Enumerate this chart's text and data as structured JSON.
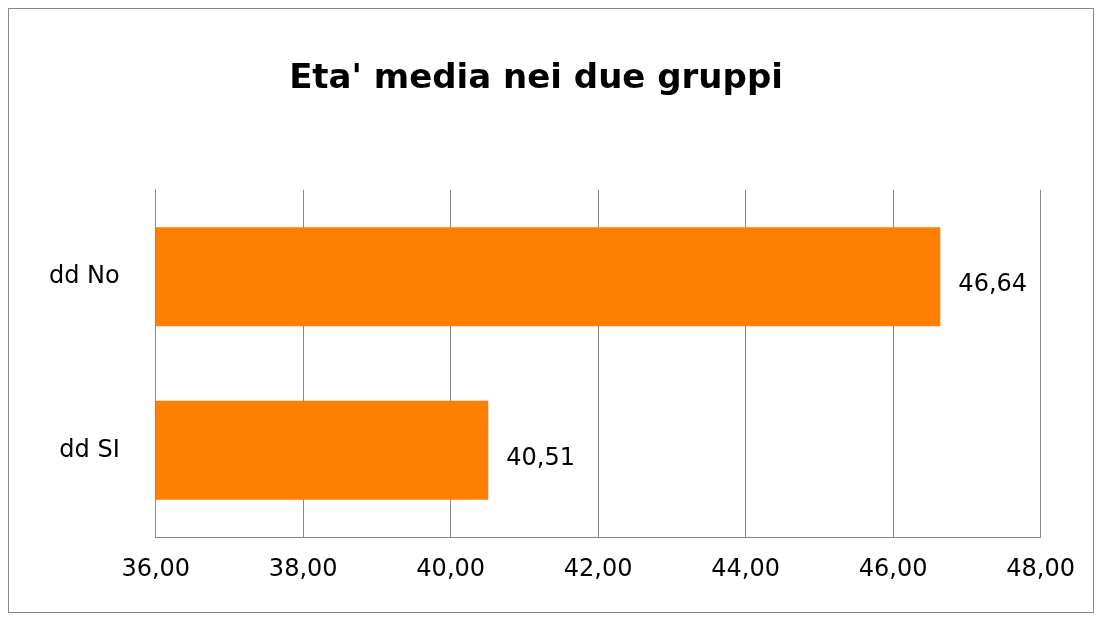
{
  "chart_data": {
    "type": "bar",
    "orientation": "horizontal",
    "title": "Eta' media nei due gruppi",
    "categories": [
      "dd No",
      "dd SI"
    ],
    "values": [
      46.64,
      40.51
    ],
    "value_labels": [
      "46,64",
      "40,51"
    ],
    "color": "#ff8000",
    "xlim": [
      36,
      48
    ],
    "xticks": [
      {
        "value": 36,
        "label": "36,00"
      },
      {
        "value": 38,
        "label": "38,00"
      },
      {
        "value": 40,
        "label": "40,00"
      },
      {
        "value": 42,
        "label": "42,00"
      },
      {
        "value": 44,
        "label": "44,00"
      },
      {
        "value": 46,
        "label": "46,00"
      },
      {
        "value": 48,
        "label": "48,00"
      }
    ],
    "grid": "x",
    "legend": false
  }
}
